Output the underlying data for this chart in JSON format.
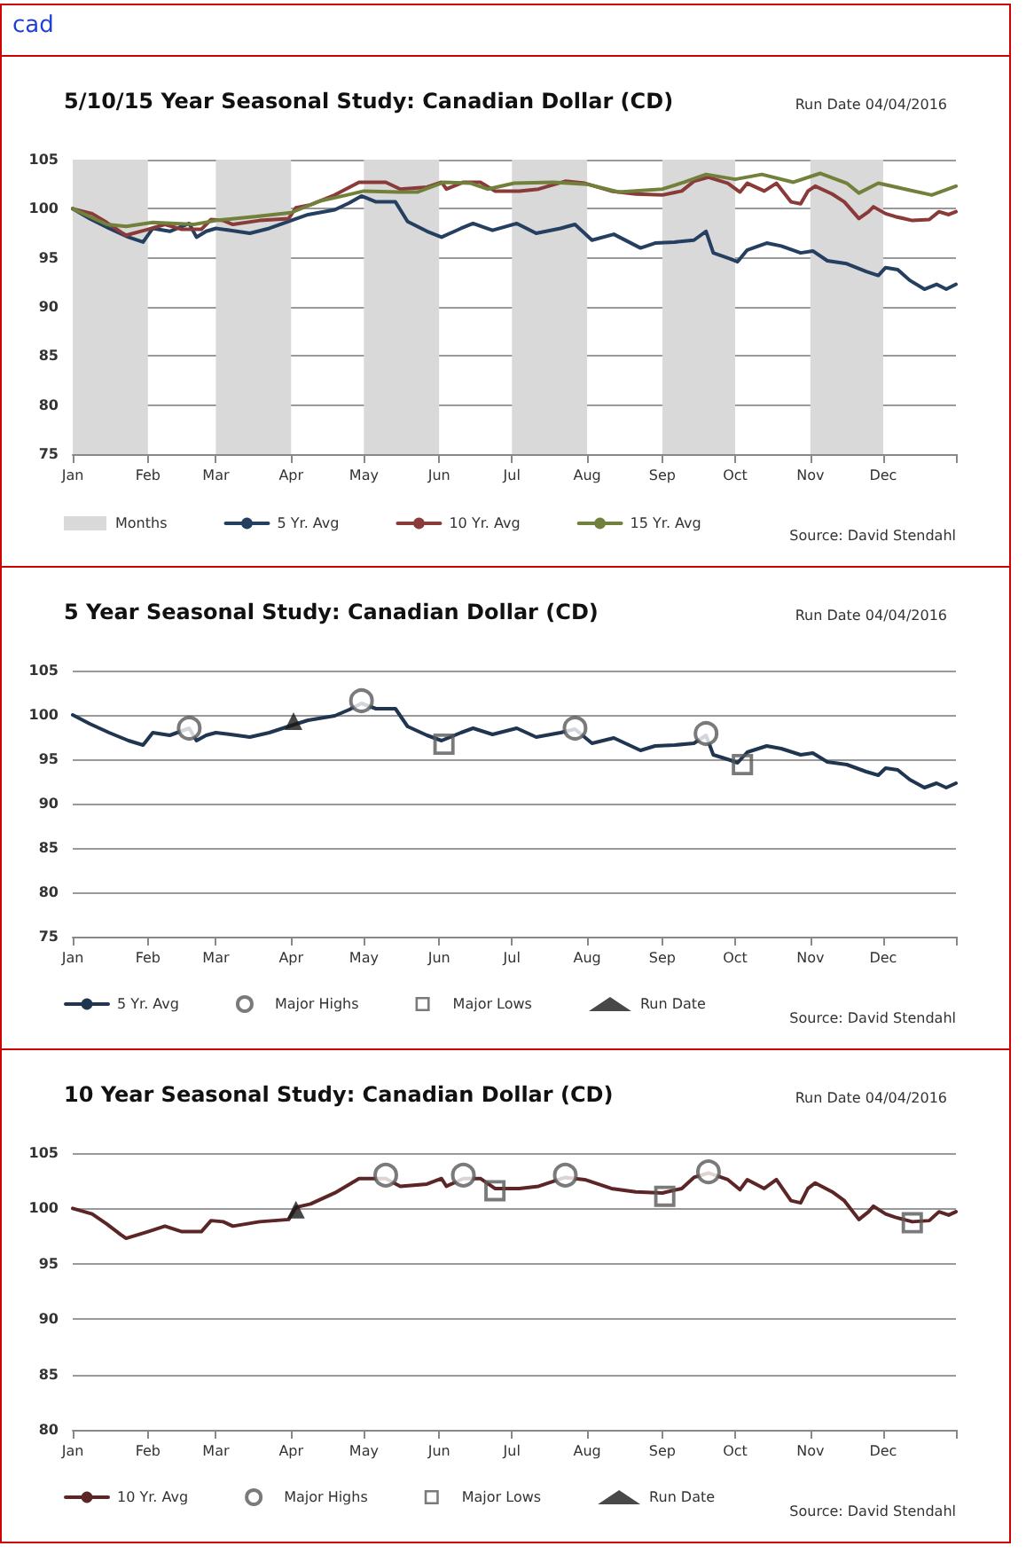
{
  "chart_data": [
    {
      "type": "other",
      "title": "cad"
    },
    {
      "type": "line",
      "title": "5/10/15 Year Seasonal Study: Canadian Dollar (CD)",
      "subtitle": "Run Date 04/04/2016",
      "annotations": [
        "Source: David Stendahl"
      ],
      "xlim": [
        "--01-01",
        "--12-31"
      ],
      "xticks": [
        {
          "value": "--01-01",
          "label": "Jan"
        },
        {
          "value": "--02-01",
          "label": "Feb"
        },
        {
          "value": "--03-01",
          "label": "Mar"
        },
        {
          "value": "--04-01",
          "label": "Apr"
        },
        {
          "value": "--05-01",
          "label": "May"
        },
        {
          "value": "--06-01",
          "label": "Jun"
        },
        {
          "value": "--07-01",
          "label": "Jul"
        },
        {
          "value": "--08-01",
          "label": "Aug"
        },
        {
          "value": "--09-01",
          "label": "Sep"
        },
        {
          "value": "--10-01",
          "label": "Oct"
        },
        {
          "value": "--11-01",
          "label": "Nov"
        },
        {
          "value": "--12-01",
          "label": "Dec"
        },
        {
          "value": "--12-31",
          "label": null
        }
      ],
      "ylim": [
        75,
        105
      ],
      "yticks": [
        75,
        80,
        85,
        90,
        95,
        100,
        105
      ],
      "grid": "y",
      "legend": "bottom",
      "marker": "none",
      "line_style": "solid",
      "bands": [
        {
          "axis": "x",
          "from": "--01-01",
          "to": "--02-01",
          "label": "Months",
          "color": "#d9d9d9"
        },
        {
          "axis": "x",
          "from": "--03-01",
          "to": "--04-01",
          "color": "#d9d9d9"
        },
        {
          "axis": "x",
          "from": "--05-01",
          "to": "--06-01",
          "color": "#d9d9d9"
        },
        {
          "axis": "x",
          "from": "--07-01",
          "to": "--08-01",
          "color": "#d9d9d9"
        },
        {
          "axis": "x",
          "from": "--09-01",
          "to": "--10-01",
          "color": "#d9d9d9"
        },
        {
          "axis": "x",
          "from": "--11-01",
          "to": "--12-01",
          "color": "#d9d9d9"
        }
      ],
      "series": [
        {
          "name": "5 Yr. Avg",
          "color": "#243f60",
          "x": [
            "--01-01",
            "--01-08",
            "--01-16",
            "--01-24",
            "--01-30",
            "--02-03",
            "--02-10",
            "--02-18",
            "--02-21",
            "--02-25",
            "--03-01",
            "--03-07",
            "--03-15",
            "--03-23",
            "--04-01",
            "--04-08",
            "--04-19",
            "--04-25",
            "--04-30",
            "--05-06",
            "--05-14",
            "--05-19",
            "--05-27",
            "--06-02",
            "--06-10",
            "--06-15",
            "--06-23",
            "--07-03",
            "--07-11",
            "--07-21",
            "--07-27",
            "--08-03",
            "--08-12",
            "--08-23",
            "--08-29",
            "--09-06",
            "--09-14",
            "--09-19",
            "--09-22",
            "--09-29",
            "--10-02",
            "--10-06",
            "--10-14",
            "--10-20",
            "--10-28",
            "--11-02",
            "--11-08",
            "--11-16",
            "--11-24",
            "--11-29",
            "--12-02",
            "--12-07",
            "--12-12",
            "--12-18",
            "--12-23",
            "--12-27",
            "--12-31"
          ],
          "values": [
            100,
            99,
            98,
            97.1,
            96.6,
            98,
            97.7,
            98.5,
            97.1,
            97.7,
            98,
            97.8,
            97.5,
            98,
            98.8,
            99.4,
            99.9,
            100.6,
            101.3,
            100.7,
            100.7,
            98.7,
            97.7,
            97.1,
            98,
            98.5,
            97.8,
            98.5,
            97.5,
            98,
            98.4,
            96.8,
            97.4,
            96,
            96.5,
            96.6,
            96.8,
            97.7,
            95.5,
            94.9,
            94.6,
            95.8,
            96.5,
            96.2,
            95.5,
            95.7,
            94.7,
            94.4,
            93.6,
            93.2,
            94,
            93.8,
            92.7,
            91.8,
            92.3,
            91.8,
            92.3
          ]
        },
        {
          "name": "10 Yr. Avg",
          "color": "#8b3a3a",
          "x": [
            "--01-01",
            "--01-09",
            "--01-15",
            "--01-21",
            "--01-23",
            "--02-01",
            "--02-08",
            "--02-15",
            "--02-23",
            "--02-27",
            "--03-04",
            "--03-08",
            "--03-19",
            "--03-31",
            "--04-03",
            "--04-09",
            "--04-19",
            "--04-29",
            "--05-10",
            "--05-16",
            "--05-27",
            "--06-02",
            "--06-04",
            "--06-11",
            "--06-18",
            "--06-24",
            "--07-04",
            "--07-12",
            "--07-23",
            "--07-31",
            "--08-11",
            "--08-21",
            "--09-01",
            "--09-09",
            "--09-14",
            "--09-20",
            "--09-28",
            "--10-03",
            "--10-06",
            "--10-13",
            "--10-18",
            "--10-24",
            "--10-28",
            "--10-31",
            "--11-03",
            "--11-10",
            "--11-15",
            "--11-21",
            "--11-25",
            "--11-27",
            "--12-02",
            "--12-06",
            "--12-13",
            "--12-20",
            "--12-24",
            "--12-28",
            "--12-31"
          ],
          "values": [
            100,
            99.5,
            98.6,
            97.6,
            97.3,
            97.9,
            98.4,
            97.9,
            97.9,
            98.9,
            98.8,
            98.4,
            98.8,
            99,
            100.1,
            100.4,
            101.4,
            102.7,
            102.7,
            102,
            102.2,
            102.7,
            102,
            102.7,
            102.7,
            101.8,
            101.8,
            102,
            102.8,
            102.6,
            101.8,
            101.5,
            101.4,
            101.8,
            102.8,
            103.2,
            102.6,
            101.7,
            102.6,
            101.8,
            102.6,
            100.7,
            100.5,
            101.8,
            102.3,
            101.5,
            100.7,
            99,
            99.7,
            100.2,
            99.5,
            99.2,
            98.8,
            98.9,
            99.7,
            99.4,
            99.7
          ]
        },
        {
          "name": "15 Yr. Avg",
          "color": "#71803a",
          "x": [
            "--01-01",
            "--01-15",
            "--01-23",
            "--02-03",
            "--02-20",
            "--03-01",
            "--03-17",
            "--04-01",
            "--04-13",
            "--04-24",
            "--05-01",
            "--05-15",
            "--05-23",
            "--06-03",
            "--06-14",
            "--06-21",
            "--07-02",
            "--07-18",
            "--08-01",
            "--08-14",
            "--09-01",
            "--09-10",
            "--09-19",
            "--10-01",
            "--10-12",
            "--10-25",
            "--11-05",
            "--11-16",
            "--11-21",
            "--11-29",
            "--12-10",
            "--12-21",
            "--12-31"
          ],
          "values": [
            100,
            98.4,
            98.2,
            98.6,
            98.4,
            98.8,
            99.2,
            99.6,
            100.8,
            101.4,
            101.8,
            101.7,
            101.7,
            102.7,
            102.6,
            102,
            102.6,
            102.7,
            102.5,
            101.7,
            102,
            102.7,
            103.5,
            103,
            103.5,
            102.7,
            103.6,
            102.6,
            101.6,
            102.6,
            102,
            101.4,
            102.3
          ]
        }
      ]
    },
    {
      "type": "line",
      "title": "5 Year Seasonal Study: Canadian Dollar (CD)",
      "subtitle": "Run Date 04/04/2016",
      "annotations": [
        "Source: David Stendahl"
      ],
      "xlim": [
        "--01-01",
        "--12-31"
      ],
      "xticks": [
        {
          "value": "--01-01",
          "label": "Jan"
        },
        {
          "value": "--02-01",
          "label": "Feb"
        },
        {
          "value": "--03-01",
          "label": "Mar"
        },
        {
          "value": "--04-01",
          "label": "Apr"
        },
        {
          "value": "--05-01",
          "label": "May"
        },
        {
          "value": "--06-01",
          "label": "Jun"
        },
        {
          "value": "--07-01",
          "label": "Jul"
        },
        {
          "value": "--08-01",
          "label": "Aug"
        },
        {
          "value": "--09-01",
          "label": "Sep"
        },
        {
          "value": "--10-01",
          "label": "Oct"
        },
        {
          "value": "--11-01",
          "label": "Nov"
        },
        {
          "value": "--12-01",
          "label": "Dec"
        },
        {
          "value": "--12-31",
          "label": null
        }
      ],
      "ylim": [
        75,
        105
      ],
      "yticks": [
        75,
        80,
        85,
        90,
        95,
        100,
        105
      ],
      "grid": "y",
      "legend": "bottom",
      "line_style": "solid",
      "series": [
        {
          "name": "5 Yr. Avg",
          "color": "#1f3550",
          "marker": "none",
          "x": [
            "--01-01",
            "--01-08",
            "--01-16",
            "--01-24",
            "--01-30",
            "--02-03",
            "--02-10",
            "--02-18",
            "--02-21",
            "--02-25",
            "--03-01",
            "--03-07",
            "--03-15",
            "--03-23",
            "--04-01",
            "--04-08",
            "--04-19",
            "--04-25",
            "--04-30",
            "--05-06",
            "--05-14",
            "--05-19",
            "--05-27",
            "--06-02",
            "--06-10",
            "--06-15",
            "--06-23",
            "--07-03",
            "--07-11",
            "--07-21",
            "--07-27",
            "--08-03",
            "--08-12",
            "--08-23",
            "--08-29",
            "--09-06",
            "--09-14",
            "--09-19",
            "--09-22",
            "--09-29",
            "--10-02",
            "--10-06",
            "--10-14",
            "--10-20",
            "--10-28",
            "--11-02",
            "--11-08",
            "--11-16",
            "--11-24",
            "--11-29",
            "--12-02",
            "--12-07",
            "--12-12",
            "--12-18",
            "--12-23",
            "--12-27",
            "--12-31"
          ],
          "values": [
            100,
            99,
            98,
            97.1,
            96.6,
            98,
            97.7,
            98.5,
            97.1,
            97.7,
            98,
            97.8,
            97.5,
            98,
            98.8,
            99.4,
            99.9,
            100.6,
            101.3,
            100.7,
            100.7,
            98.7,
            97.7,
            97.1,
            98,
            98.5,
            97.8,
            98.5,
            97.5,
            98,
            98.4,
            96.8,
            97.4,
            96,
            96.5,
            96.6,
            96.8,
            97.7,
            95.5,
            94.9,
            94.6,
            95.8,
            96.5,
            96.2,
            95.5,
            95.7,
            94.7,
            94.4,
            93.6,
            93.2,
            94,
            93.8,
            92.7,
            91.8,
            92.3,
            91.8,
            92.3
          ]
        },
        {
          "name": "Major Highs",
          "type": "scatter",
          "marker": "circle",
          "color": "#595959",
          "x": [
            "--02-18",
            "--04-30",
            "--07-27",
            "--09-19"
          ],
          "values": [
            98.5,
            101.6,
            98.5,
            97.9
          ]
        },
        {
          "name": "Major Lows",
          "type": "scatter",
          "marker": "square",
          "color": "#595959",
          "x": [
            "--06-03",
            "--10-04"
          ],
          "values": [
            96.7,
            94.4
          ]
        },
        {
          "name": "Run Date",
          "type": "scatter",
          "marker": "triangle",
          "color": "#1a1a1a",
          "x": [
            "--04-02"
          ],
          "values": [
            99.3
          ]
        }
      ]
    },
    {
      "type": "line",
      "title": "10 Year Seasonal Study: Canadian Dollar (CD)",
      "subtitle": "Run Date 04/04/2016",
      "annotations": [
        "Source: David Stendahl"
      ],
      "xlim": [
        "--01-01",
        "--12-31"
      ],
      "xticks": [
        {
          "value": "--01-01",
          "label": "Jan"
        },
        {
          "value": "--02-01",
          "label": "Feb"
        },
        {
          "value": "--03-01",
          "label": "Mar"
        },
        {
          "value": "--04-01",
          "label": "Apr"
        },
        {
          "value": "--05-01",
          "label": "May"
        },
        {
          "value": "--06-01",
          "label": "Jun"
        },
        {
          "value": "--07-01",
          "label": "Jul"
        },
        {
          "value": "--08-01",
          "label": "Aug"
        },
        {
          "value": "--09-01",
          "label": "Sep"
        },
        {
          "value": "--10-01",
          "label": "Oct"
        },
        {
          "value": "--11-01",
          "label": "Nov"
        },
        {
          "value": "--12-01",
          "label": "Dec"
        },
        {
          "value": "--12-31",
          "label": null
        }
      ],
      "ylim": [
        80,
        105
      ],
      "yticks": [
        80,
        85,
        90,
        95,
        100,
        105
      ],
      "grid": "y",
      "legend": "bottom",
      "line_style": "solid",
      "series": [
        {
          "name": "10 Yr. Avg",
          "color": "#5c2626",
          "marker": "none",
          "x": [
            "--01-01",
            "--01-09",
            "--01-15",
            "--01-21",
            "--01-23",
            "--02-01",
            "--02-08",
            "--02-15",
            "--02-23",
            "--02-27",
            "--03-04",
            "--03-08",
            "--03-19",
            "--03-31",
            "--04-03",
            "--04-09",
            "--04-19",
            "--04-29",
            "--05-10",
            "--05-16",
            "--05-27",
            "--06-02",
            "--06-04",
            "--06-11",
            "--06-18",
            "--06-24",
            "--07-04",
            "--07-12",
            "--07-23",
            "--07-31",
            "--08-11",
            "--08-21",
            "--09-01",
            "--09-09",
            "--09-14",
            "--09-20",
            "--09-28",
            "--10-03",
            "--10-06",
            "--10-13",
            "--10-18",
            "--10-24",
            "--10-28",
            "--10-31",
            "--11-03",
            "--11-10",
            "--11-15",
            "--11-21",
            "--11-25",
            "--11-27",
            "--12-02",
            "--12-06",
            "--12-13",
            "--12-20",
            "--12-24",
            "--12-28",
            "--12-31"
          ],
          "values": [
            100,
            99.5,
            98.6,
            97.6,
            97.3,
            97.9,
            98.4,
            97.9,
            97.9,
            98.9,
            98.8,
            98.4,
            98.8,
            99,
            100.1,
            100.4,
            101.4,
            102.7,
            102.7,
            102,
            102.2,
            102.7,
            102,
            102.7,
            102.7,
            101.8,
            101.8,
            102,
            102.8,
            102.6,
            101.8,
            101.5,
            101.4,
            101.8,
            102.8,
            103.2,
            102.6,
            101.7,
            102.6,
            101.8,
            102.6,
            100.7,
            100.5,
            101.8,
            102.3,
            101.5,
            100.7,
            99,
            99.7,
            100.2,
            99.5,
            99.2,
            98.8,
            98.9,
            99.7,
            99.4,
            99.7
          ]
        },
        {
          "name": "Major Highs",
          "type": "scatter",
          "marker": "circle",
          "color": "#595959",
          "x": [
            "--05-10",
            "--06-11",
            "--07-23",
            "--09-20"
          ],
          "values": [
            103,
            103,
            103,
            103.3
          ]
        },
        {
          "name": "Major Lows",
          "type": "scatter",
          "marker": "square",
          "color": "#595959",
          "x": [
            "--06-24",
            "--09-02",
            "--12-13"
          ],
          "values": [
            101.6,
            101.1,
            98.7
          ]
        },
        {
          "name": "Run Date",
          "type": "scatter",
          "marker": "triangle",
          "color": "#1a1a1a",
          "x": [
            "--04-03"
          ],
          "values": [
            99.9
          ]
        }
      ]
    }
  ]
}
